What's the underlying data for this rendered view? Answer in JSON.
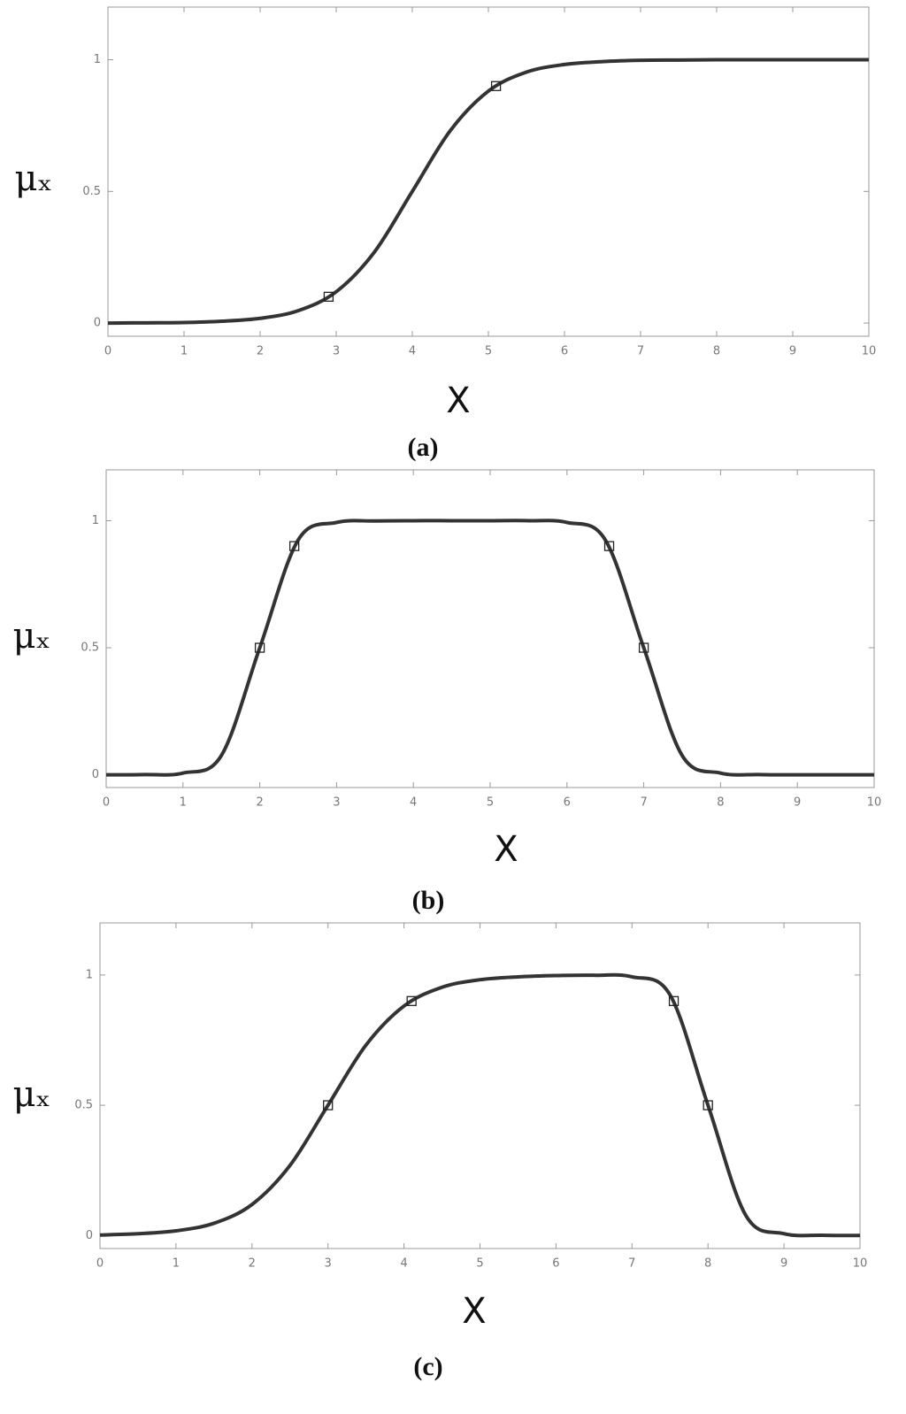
{
  "chart_data": [
    {
      "type": "line",
      "caption": "(a)",
      "ylabel": "μₓ",
      "xlabel": "X",
      "color": "#333333",
      "x": [
        0,
        0.5,
        1,
        1.5,
        2,
        2.5,
        3,
        3.5,
        4,
        4.5,
        5,
        5.5,
        6,
        6.5,
        7,
        7.5,
        8,
        8.5,
        9,
        9.5,
        10
      ],
      "values": [
        0,
        0.001,
        0.002,
        0.007,
        0.018,
        0.047,
        0.119,
        0.269,
        0.5,
        0.731,
        0.881,
        0.953,
        0.982,
        0.993,
        0.998,
        0.999,
        1,
        1,
        1,
        1,
        1
      ],
      "markers": {
        "x": [
          2.9,
          5.1
        ],
        "values": [
          0.1,
          0.9
        ]
      },
      "xlim": [
        0,
        10
      ],
      "ylim": [
        -0.05,
        1.2
      ],
      "xticks": [
        0,
        1,
        2,
        3,
        4,
        5,
        6,
        7,
        8,
        9,
        10
      ],
      "yticks": [
        0,
        0.5,
        1
      ]
    },
    {
      "type": "line",
      "caption": "(b)",
      "ylabel": "μₓ",
      "xlabel": "X",
      "color": "#333333",
      "x": [
        0,
        0.5,
        1,
        1.5,
        2,
        2.5,
        3,
        3.5,
        4,
        4.5,
        5,
        5.5,
        6,
        6.5,
        7,
        7.5,
        8,
        8.5,
        9,
        9.5,
        10
      ],
      "values": [
        0,
        0.001,
        0.007,
        0.076,
        0.5,
        0.924,
        0.993,
        0.999,
        1,
        1,
        1,
        1,
        0.993,
        0.924,
        0.5,
        0.076,
        0.007,
        0.001,
        0,
        0,
        0
      ],
      "markers": {
        "x": [
          2,
          2.45,
          6.55,
          7
        ],
        "values": [
          0.5,
          0.9,
          0.9,
          0.5
        ]
      },
      "xlim": [
        0,
        10
      ],
      "ylim": [
        -0.05,
        1.2
      ],
      "xticks": [
        0,
        1,
        2,
        3,
        4,
        5,
        6,
        7,
        8,
        9,
        10
      ],
      "yticks": [
        0,
        0.5,
        1
      ]
    },
    {
      "type": "line",
      "caption": "(c)",
      "ylabel": "μₓ",
      "xlabel": "X",
      "color": "#333333",
      "x": [
        0,
        0.5,
        1,
        1.5,
        2,
        2.5,
        3,
        3.5,
        4,
        4.5,
        5,
        5.5,
        6,
        6.5,
        7,
        7.5,
        8,
        8.5,
        9,
        9.5,
        10
      ],
      "values": [
        0.002,
        0.007,
        0.018,
        0.047,
        0.119,
        0.269,
        0.5,
        0.731,
        0.881,
        0.953,
        0.982,
        0.993,
        0.998,
        0.999,
        0.993,
        0.924,
        0.5,
        0.076,
        0.007,
        0.001,
        0
      ],
      "markers": {
        "x": [
          3,
          4.1,
          7.55,
          8
        ],
        "values": [
          0.5,
          0.9,
          0.9,
          0.5
        ]
      },
      "xlim": [
        0,
        10
      ],
      "ylim": [
        -0.05,
        1.2
      ],
      "xticks": [
        0,
        1,
        2,
        3,
        4,
        5,
        6,
        7,
        8,
        9,
        10
      ],
      "yticks": [
        0,
        0.5,
        1
      ]
    }
  ]
}
